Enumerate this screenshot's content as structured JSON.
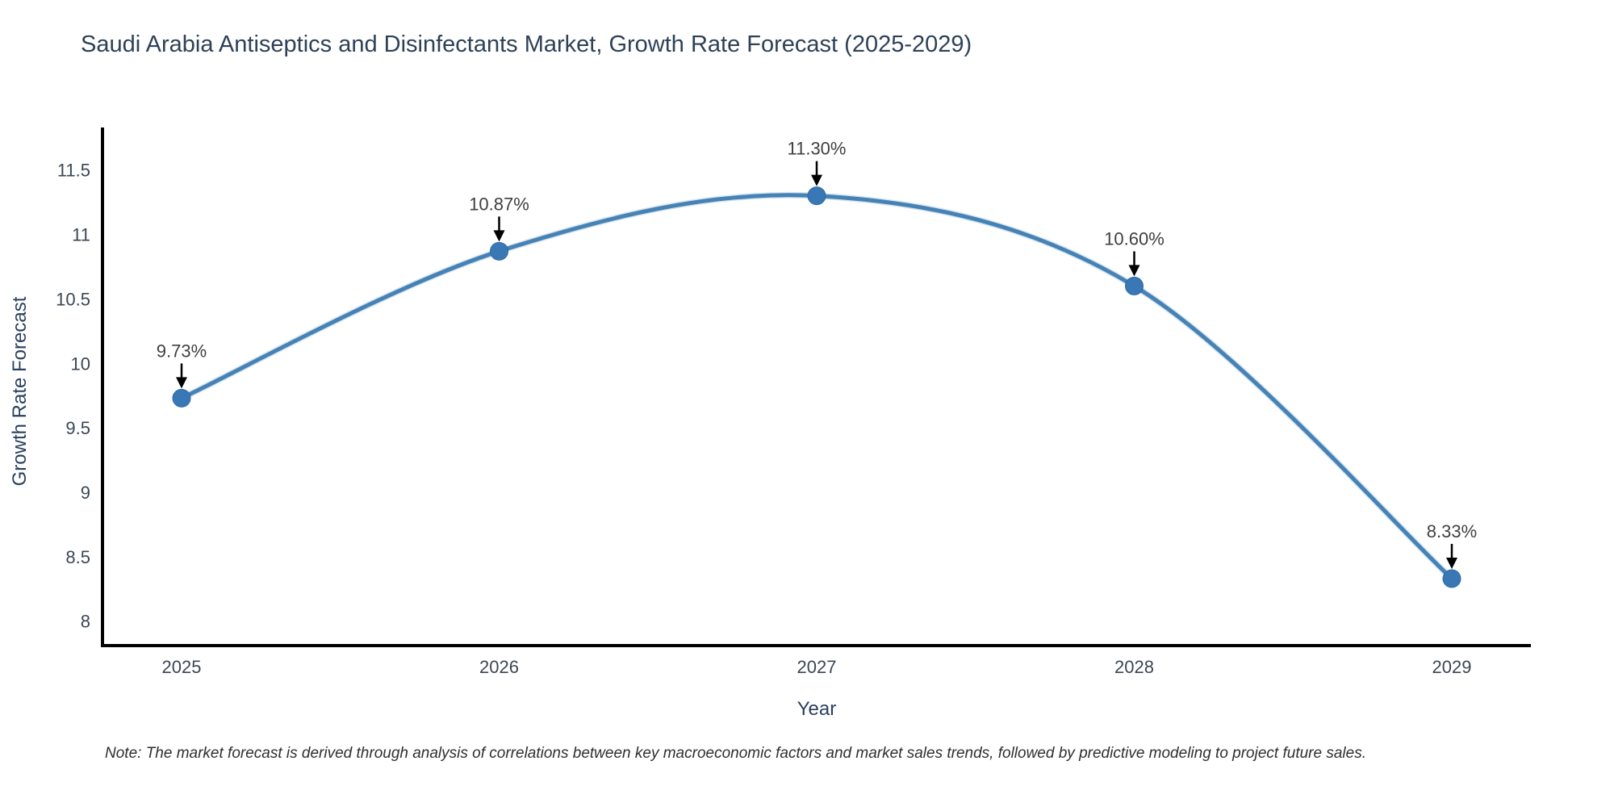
{
  "chart_data": {
    "type": "line",
    "title": "Saudi Arabia Antiseptics and Disinfectants Market, Growth Rate Forecast (2025-2029)",
    "xlabel": "Year",
    "ylabel": "Growth Rate Forecast",
    "categories": [
      "2025",
      "2026",
      "2027",
      "2028",
      "2029"
    ],
    "values": [
      9.73,
      10.87,
      11.3,
      10.6,
      8.33
    ],
    "point_labels": [
      "9.73%",
      "10.87%",
      "11.30%",
      "10.60%",
      "8.33%"
    ],
    "ytick_values": [
      8,
      8.5,
      9,
      9.5,
      10,
      10.5,
      11,
      11.5
    ],
    "ytick_labels": [
      "8",
      "8.5",
      "9",
      "9.5",
      "10",
      "10.5",
      "11",
      "11.5"
    ],
    "ylim": [
      7.81,
      11.83
    ],
    "grid": false,
    "legend": "none",
    "smooth_line": true,
    "line_color": "#4682b4",
    "line_halo_color": "#a3c6e4",
    "marker_color": "#3a78b5",
    "marker_edge_color": "#2f6ba3",
    "annotation_text_color": "#404040",
    "annotation_arrow_color": "#000000",
    "axis_spine_color": "#000000",
    "title_color": "#2e4157",
    "tick_color": "#3b4754",
    "note": "Note: The market forecast is derived through analysis of correlations between key macroeconomic factors and market sales trends, followed by predictive modeling to project future sales."
  }
}
